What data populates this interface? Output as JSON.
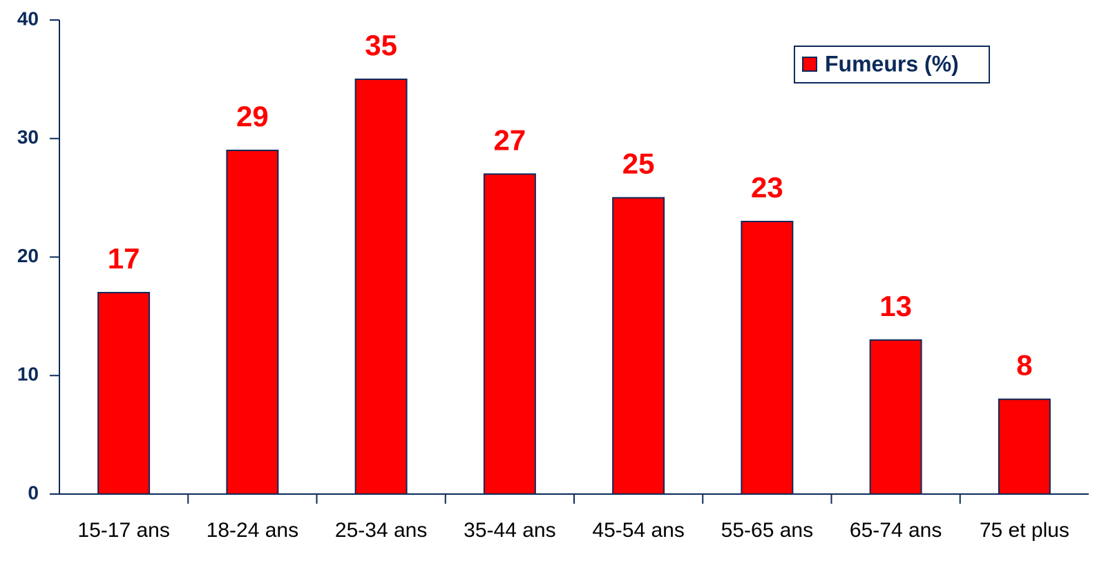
{
  "chart_data": {
    "type": "bar",
    "categories": [
      "15-17 ans",
      "18-24 ans",
      "25-34 ans",
      "35-44 ans",
      "45-54 ans",
      "55-65 ans",
      "65-74 ans",
      "75 et plus"
    ],
    "series": [
      {
        "name": "Fumeurs (%)",
        "color": "#ff0000",
        "values": [
          17,
          29,
          35,
          27,
          25,
          23,
          13,
          8
        ]
      }
    ],
    "ylim": [
      0,
      40
    ],
    "yticks": [
      0,
      10,
      20,
      30,
      40
    ],
    "grid": false,
    "legend": "top-right",
    "data_labels": true
  }
}
